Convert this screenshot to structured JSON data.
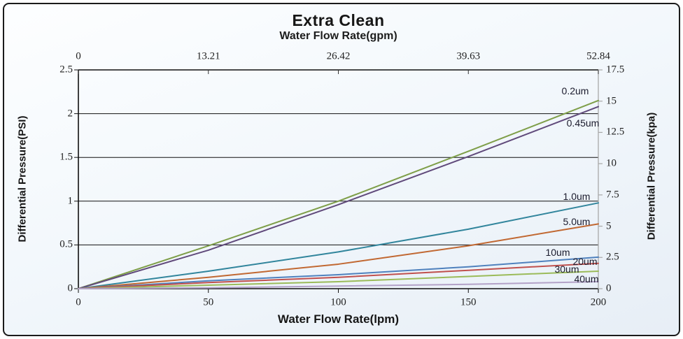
{
  "title": "Extra Clean",
  "subtitle": "Water Flow Rate(gpm)",
  "axes": {
    "top": {
      "ticks": [
        "0",
        "13.21",
        "26.42",
        "39.63",
        "52.84"
      ]
    },
    "bottom": {
      "label": "Water Flow Rate(lpm)",
      "ticks": [
        "0",
        "50",
        "100",
        "150",
        "200"
      ]
    },
    "left": {
      "label": "Differential Pressure(PSI)",
      "ticks": [
        "0",
        "0.5",
        "1",
        "1.5",
        "2",
        "2.5"
      ]
    },
    "right": {
      "label": "Differential Pressure(kpa)",
      "ticks": [
        "0",
        "2.5",
        "5",
        "7.5",
        "10",
        "12.5",
        "15",
        "17.5"
      ]
    }
  },
  "chart_data": {
    "type": "line",
    "title": "Extra Clean",
    "x_axis_top_label": "Water Flow Rate(gpm)",
    "x_axis_top_ticks": [
      0,
      13.21,
      26.42,
      39.63,
      52.84
    ],
    "x_axis_bottom_label": "Water Flow Rate(lpm)",
    "y_axis_left_label": "Differential Pressure(PSI)",
    "y_axis_right_label": "Differential Pressure(kpa)",
    "xlim": [
      0,
      200
    ],
    "ylim_left_psi": [
      0,
      2.5
    ],
    "ylim_right_kpa": [
      0,
      17.5
    ],
    "grid": "horizontal",
    "legend_position": "labels-at-line-ends",
    "x": [
      0,
      50,
      100,
      150,
      200
    ],
    "series": [
      {
        "name": "0.2um",
        "color": "#7E9E48",
        "values": [
          0,
          0.49,
          1.0,
          1.57,
          2.15
        ]
      },
      {
        "name": "0.45um",
        "color": "#604A7B",
        "values": [
          0,
          0.44,
          0.96,
          1.51,
          2.08
        ]
      },
      {
        "name": "1.0um",
        "color": "#31859C",
        "values": [
          0,
          0.2,
          0.42,
          0.68,
          0.98
        ]
      },
      {
        "name": "5.0um",
        "color": "#C16832",
        "values": [
          0,
          0.13,
          0.28,
          0.49,
          0.74
        ]
      },
      {
        "name": "10um",
        "color": "#4F81BD",
        "values": [
          0,
          0.09,
          0.16,
          0.25,
          0.36
        ]
      },
      {
        "name": "20um",
        "color": "#C0504D",
        "values": [
          0,
          0.07,
          0.13,
          0.21,
          0.29
        ]
      },
      {
        "name": "30um",
        "color": "#9BBB59",
        "values": [
          0,
          0.04,
          0.08,
          0.14,
          0.2
        ]
      },
      {
        "name": "40um",
        "color": "#B3A2C7",
        "values": [
          0,
          0.01,
          0.03,
          0.05,
          0.08
        ]
      }
    ]
  }
}
